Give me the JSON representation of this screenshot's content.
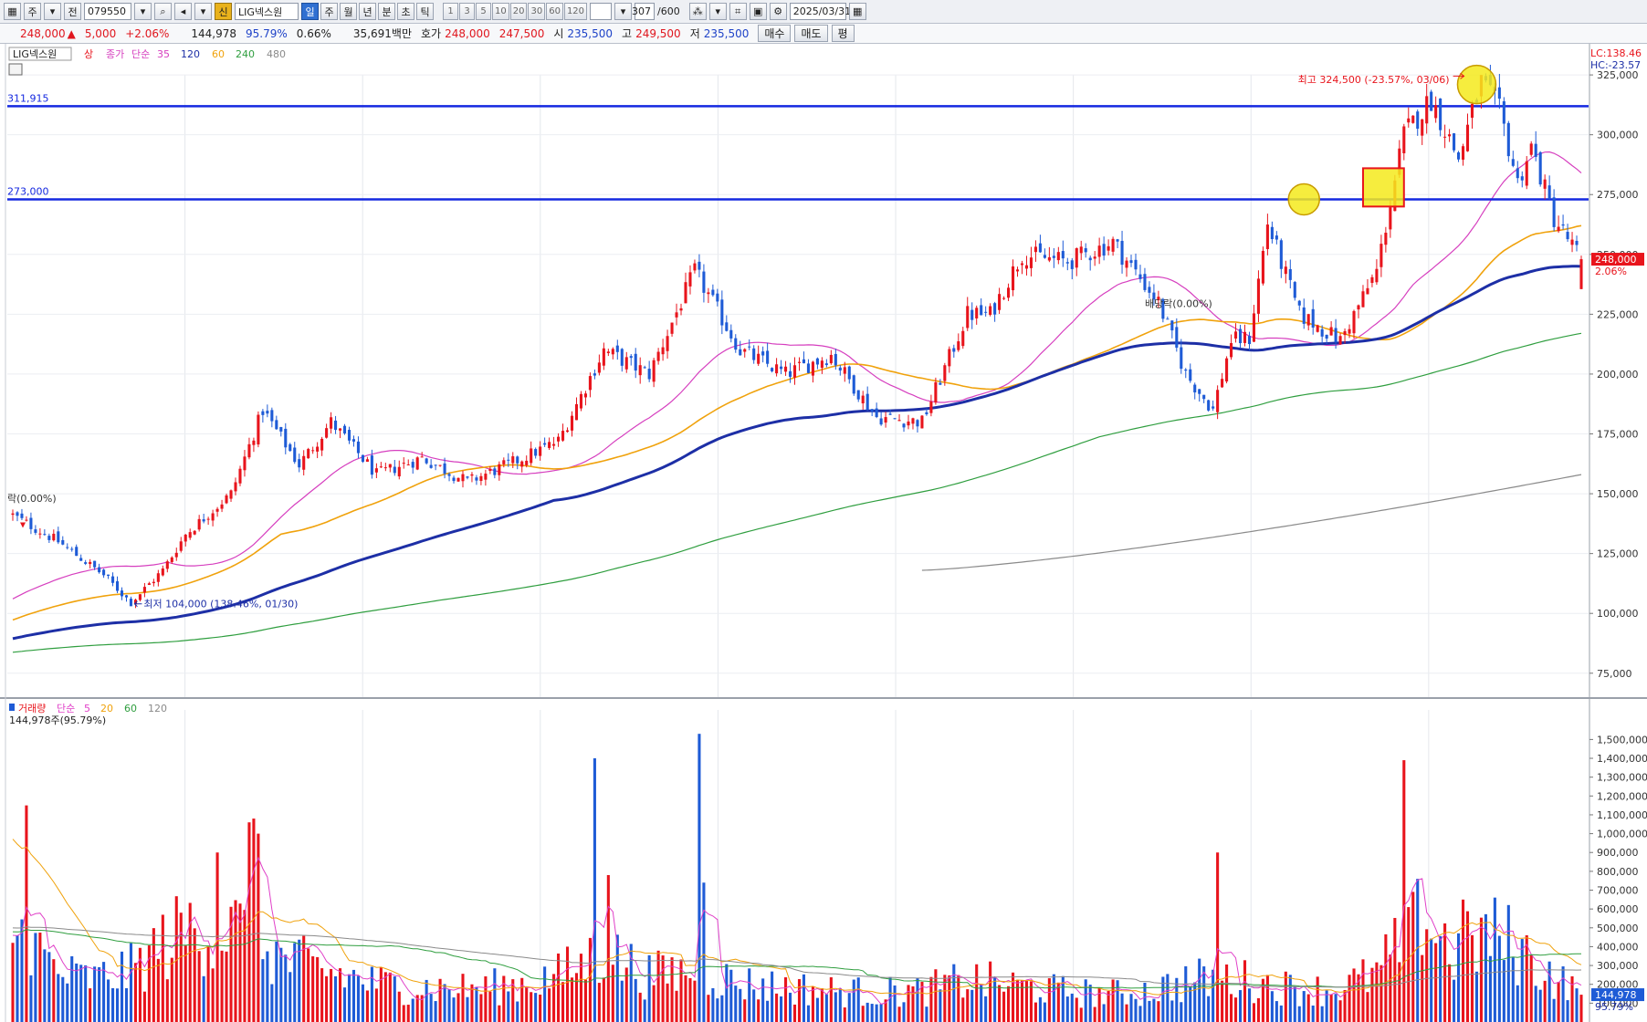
{
  "toolbar": {
    "market": "주",
    "prev": "전",
    "code": "079550",
    "badge": "신",
    "name": "LIG넥스원",
    "periods": [
      "일",
      "주",
      "월",
      "년",
      "분",
      "초",
      "틱"
    ],
    "selected_period": "일",
    "nums": [
      "1",
      "3",
      "5",
      "10",
      "20",
      "30",
      "60",
      "120"
    ],
    "count": "307",
    "count_total": "/600",
    "date": "2025/03/31"
  },
  "quote": {
    "price": "248,000",
    "change_arrow": "▲",
    "change": "5,000",
    "change_pct": "+2.06%",
    "volume": "144,978",
    "volume_ratio": "95.79%",
    "turnover": "0.66%",
    "amount": "35,691백만",
    "ask_label": "호가",
    "ask": "248,000",
    "bid": "247,500",
    "open_label": "시",
    "open": "235,500",
    "high_label": "고",
    "high": "249,500",
    "low_label": "저",
    "low": "235,500",
    "buy_label": "매수",
    "sell_label": "매도",
    "avg_label": "평"
  },
  "legend": {
    "stock": "LIG넥스원",
    "up": "상",
    "close": "종가",
    "simple": "단순",
    "ma": [
      "35",
      "120",
      "60",
      "240",
      "480"
    ],
    "ma_colors": [
      "#d63fbf",
      "#1d2fa6",
      "#f0a20c",
      "#2f9e3f",
      "#8a8a8a"
    ],
    "lc": "LC:138.46",
    "hc": "HC:-23.57"
  },
  "vol_legend": {
    "title": "거래량",
    "simple": "단순",
    "ma": [
      "5",
      "20",
      "60",
      "120"
    ],
    "ma_colors": [
      "#e040c8",
      "#f0a20c",
      "#2f9e3f",
      "#8a8a8a"
    ],
    "current": "144,978주(95.79%)"
  },
  "annotations": {
    "hline_upper": "311,915",
    "hline_lower": "273,000",
    "high_note": "최고 324,500 (-23.57%, 03/06)",
    "low_note": "최저 104,000 (138.46%, 01/30)",
    "dividend_note": "배당락(0.00%)",
    "left_note": "락(0.00%)",
    "price_tag": "248,000",
    "price_tag_pct": "2.06%",
    "vol_tag": "144,978",
    "vol_tag_pct": "95.79%"
  },
  "colors": {
    "up": "#e8141c",
    "down": "#1e5bd6",
    "hline": "#1428e0",
    "highlight": "#f5ea1c"
  },
  "chart_data": {
    "type": "candlestick",
    "title": "LIG넥스원",
    "price_axis": {
      "ylim": [
        65000,
        338000
      ],
      "ticks": [
        75000,
        100000,
        125000,
        150000,
        175000,
        200000,
        225000,
        250000,
        275000,
        300000,
        325000
      ],
      "tick_labels": [
        "75,000",
        "100,000",
        "125,000",
        "150,000",
        "175,000",
        "200,000",
        "225,000",
        "250,000",
        "275,000",
        "300,000",
        "325,000"
      ]
    },
    "volume_axis": {
      "ylim": [
        0,
        1560000
      ],
      "ticks": [
        100000,
        200000,
        300000,
        400000,
        500000,
        600000,
        700000,
        800000,
        900000,
        1000000,
        1100000,
        1200000,
        1300000,
        1400000,
        1500000
      ],
      "tick_labels": [
        "100,000",
        "200,000",
        "300,000",
        "400,000",
        "500,000",
        "600,000",
        "700,000",
        "800,000",
        "900,000",
        "1,000,000",
        "1,100,000",
        "1,200,000",
        "1,300,000",
        "1,400,000",
        "1,500,000"
      ]
    },
    "horizontal_lines": [
      311915,
      273000
    ],
    "close_key": [
      [
        0,
        141000
      ],
      [
        10,
        130000
      ],
      [
        20,
        116000
      ],
      [
        26,
        104500
      ],
      [
        33,
        118000
      ],
      [
        38,
        133000
      ],
      [
        48,
        150000
      ],
      [
        55,
        185000
      ],
      [
        63,
        162000
      ],
      [
        70,
        180000
      ],
      [
        80,
        158000
      ],
      [
        90,
        165000
      ],
      [
        100,
        155000
      ],
      [
        110,
        163000
      ],
      [
        120,
        172000
      ],
      [
        130,
        210000
      ],
      [
        140,
        200000
      ],
      [
        150,
        243000
      ],
      [
        160,
        210000
      ],
      [
        170,
        200000
      ],
      [
        180,
        208000
      ],
      [
        190,
        182000
      ],
      [
        200,
        180000
      ],
      [
        210,
        225000
      ],
      [
        215,
        225000
      ],
      [
        222,
        250000
      ],
      [
        232,
        247000
      ],
      [
        242,
        255000
      ],
      [
        252,
        230000
      ],
      [
        258,
        200000
      ],
      [
        264,
        185000
      ],
      [
        268,
        214000
      ],
      [
        272,
        215000
      ],
      [
        276,
        263000
      ],
      [
        283,
        225000
      ],
      [
        292,
        214000
      ],
      [
        300,
        243000
      ],
      [
        306,
        300000
      ],
      [
        312,
        315000
      ],
      [
        318,
        290000
      ],
      [
        323,
        322000
      ],
      [
        327,
        310000
      ],
      [
        331,
        280000
      ],
      [
        334,
        295000
      ],
      [
        339,
        265000
      ],
      [
        345,
        248000
      ]
    ],
    "volume_key": [
      [
        0,
        500000
      ],
      [
        6,
        380000
      ],
      [
        10,
        260000
      ],
      [
        18,
        230000
      ],
      [
        26,
        280000
      ],
      [
        33,
        420000
      ],
      [
        40,
        520000
      ],
      [
        47,
        520000
      ],
      [
        55,
        420000
      ],
      [
        60,
        330000
      ],
      [
        70,
        270000
      ],
      [
        80,
        210000
      ],
      [
        90,
        190000
      ],
      [
        100,
        180000
      ],
      [
        110,
        200000
      ],
      [
        120,
        250000
      ],
      [
        130,
        380000
      ],
      [
        140,
        250000
      ],
      [
        150,
        280000
      ],
      [
        160,
        210000
      ],
      [
        170,
        190000
      ],
      [
        180,
        170000
      ],
      [
        190,
        160000
      ],
      [
        200,
        170000
      ],
      [
        210,
        230000
      ],
      [
        220,
        200000
      ],
      [
        230,
        170000
      ],
      [
        240,
        150000
      ],
      [
        250,
        170000
      ],
      [
        260,
        230000
      ],
      [
        270,
        230000
      ],
      [
        280,
        190000
      ],
      [
        290,
        170000
      ],
      [
        300,
        260000
      ],
      [
        306,
        450000
      ],
      [
        312,
        520000
      ],
      [
        318,
        360000
      ],
      [
        324,
        480000
      ],
      [
        330,
        420000
      ],
      [
        336,
        300000
      ],
      [
        345,
        144978
      ]
    ],
    "volume_spikes": [
      [
        3,
        1150000
      ],
      [
        45,
        900000
      ],
      [
        52,
        1060000
      ],
      [
        53,
        1080000
      ],
      [
        54,
        1000000
      ],
      [
        128,
        1400000
      ],
      [
        131,
        780000
      ],
      [
        151,
        1530000
      ],
      [
        152,
        740000
      ],
      [
        265,
        900000
      ],
      [
        306,
        1390000
      ],
      [
        309,
        760000
      ],
      [
        319,
        650000
      ]
    ],
    "ma_start": {
      "35": 105000,
      "60": 96500,
      "120": 89000,
      "240": 83500
    },
    "ma_end": {
      "35": 284000,
      "60": 262000,
      "120": 245000,
      "240": 217000
    },
    "ma480_segment": [
      [
        200,
        118000
      ],
      [
        345,
        158000
      ]
    ],
    "vol_ma_start": {
      "5": 470000,
      "20": 1000000,
      "60": 480000,
      "120": 500000
    },
    "series": [
      {
        "name": "35",
        "color": "#d63fbf"
      },
      {
        "name": "60",
        "color": "#f0a20c"
      },
      {
        "name": "120",
        "color": "#1d2fa6"
      },
      {
        "name": "240",
        "color": "#2f9e3f"
      },
      {
        "name": "480",
        "color": "#8a8a8a"
      }
    ],
    "grid": true
  }
}
